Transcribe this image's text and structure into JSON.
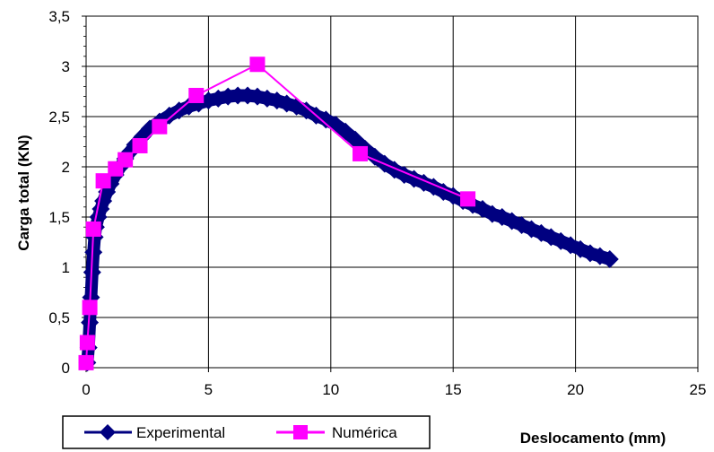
{
  "chart_data": {
    "type": "scatter",
    "title": "",
    "xlabel": "Deslocamento (mm)",
    "ylabel": "Carga total (KN)",
    "xlim": [
      0,
      25
    ],
    "ylim": [
      0,
      3.5
    ],
    "xticks": [
      "0",
      "5",
      "10",
      "15",
      "20",
      "25"
    ],
    "yticks": [
      "0",
      "0,5",
      "1",
      "1,5",
      "2",
      "2,5",
      "3",
      "3,5"
    ],
    "grid": true,
    "legend_position": "bottom-left",
    "colors": {
      "experimental": "#000080",
      "numerica": "#ff00ff",
      "grid": "#000000"
    },
    "series": [
      {
        "name": "Experimental",
        "marker": "diamond",
        "points": [
          [
            0.05,
            0.05
          ],
          [
            0.1,
            0.2
          ],
          [
            0.15,
            0.45
          ],
          [
            0.2,
            0.7
          ],
          [
            0.25,
            0.95
          ],
          [
            0.3,
            1.15
          ],
          [
            0.35,
            1.3
          ],
          [
            0.4,
            1.4
          ],
          [
            0.5,
            1.5
          ],
          [
            0.6,
            1.58
          ],
          [
            0.7,
            1.66
          ],
          [
            0.85,
            1.75
          ],
          [
            1.0,
            1.83
          ],
          [
            1.2,
            1.92
          ],
          [
            1.4,
            2.0
          ],
          [
            1.6,
            2.08
          ],
          [
            1.8,
            2.15
          ],
          [
            2.0,
            2.22
          ],
          [
            2.3,
            2.3
          ],
          [
            2.6,
            2.38
          ],
          [
            3.0,
            2.45
          ],
          [
            3.4,
            2.51
          ],
          [
            3.8,
            2.56
          ],
          [
            4.2,
            2.6
          ],
          [
            4.6,
            2.63
          ],
          [
            5.0,
            2.66
          ],
          [
            5.4,
            2.68
          ],
          [
            5.8,
            2.7
          ],
          [
            6.2,
            2.71
          ],
          [
            6.6,
            2.71
          ],
          [
            7.0,
            2.7
          ],
          [
            7.4,
            2.68
          ],
          [
            7.8,
            2.66
          ],
          [
            8.2,
            2.63
          ],
          [
            8.6,
            2.6
          ],
          [
            9.0,
            2.56
          ],
          [
            9.4,
            2.51
          ],
          [
            9.8,
            2.47
          ],
          [
            10.2,
            2.42
          ],
          [
            10.6,
            2.35
          ],
          [
            11.0,
            2.27
          ],
          [
            11.4,
            2.18
          ],
          [
            11.8,
            2.1
          ],
          [
            12.2,
            2.03
          ],
          [
            12.6,
            1.97
          ],
          [
            13.0,
            1.92
          ],
          [
            13.4,
            1.88
          ],
          [
            13.8,
            1.84
          ],
          [
            14.2,
            1.8
          ],
          [
            14.6,
            1.75
          ],
          [
            15.0,
            1.71
          ],
          [
            15.4,
            1.66
          ],
          [
            15.8,
            1.62
          ],
          [
            16.2,
            1.58
          ],
          [
            16.6,
            1.53
          ],
          [
            17.0,
            1.5
          ],
          [
            17.4,
            1.46
          ],
          [
            17.8,
            1.42
          ],
          [
            18.2,
            1.38
          ],
          [
            18.6,
            1.34
          ],
          [
            19.0,
            1.3
          ],
          [
            19.4,
            1.26
          ],
          [
            19.8,
            1.22
          ],
          [
            20.2,
            1.18
          ],
          [
            20.6,
            1.14
          ],
          [
            21.0,
            1.11
          ],
          [
            21.4,
            1.08
          ]
        ]
      },
      {
        "name": "Numérica",
        "marker": "square",
        "points": [
          [
            0.0,
            0.05
          ],
          [
            0.05,
            0.25
          ],
          [
            0.15,
            0.6
          ],
          [
            0.3,
            1.38
          ],
          [
            0.7,
            1.86
          ],
          [
            1.2,
            1.98
          ],
          [
            1.6,
            2.07
          ],
          [
            2.2,
            2.21
          ],
          [
            3.0,
            2.4
          ],
          [
            4.5,
            2.71
          ],
          [
            7.0,
            3.02
          ],
          [
            11.2,
            2.13
          ],
          [
            15.6,
            1.68
          ]
        ]
      }
    ]
  }
}
